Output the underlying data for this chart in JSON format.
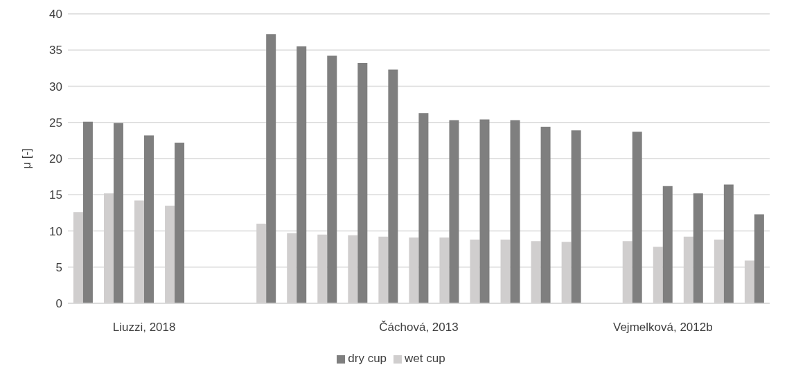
{
  "chart_data": {
    "type": "bar",
    "ylabel": "μ [-]",
    "categories": [
      null,
      null,
      "Liuzzi, 2018",
      null,
      null,
      null,
      null,
      null,
      null,
      null,
      null,
      "Čáchová, 2013",
      null,
      null,
      null,
      null,
      null,
      null,
      null,
      "Vejmelková, 2012b",
      null,
      null,
      null
    ],
    "series": [
      {
        "name": "wet cup",
        "color": "#d0cece",
        "values": [
          12.6,
          15.2,
          14.2,
          13.5,
          null,
          null,
          11.0,
          9.7,
          9.5,
          9.4,
          9.2,
          9.1,
          9.1,
          8.8,
          8.8,
          8.6,
          8.5,
          null,
          8.6,
          7.8,
          9.2,
          8.8,
          5.9
        ]
      },
      {
        "name": "dry cup",
        "color": "#7f7f7f",
        "values": [
          25.1,
          24.9,
          23.2,
          22.2,
          null,
          null,
          37.2,
          35.5,
          34.2,
          33.2,
          32.3,
          26.3,
          25.3,
          25.4,
          25.3,
          24.4,
          23.9,
          null,
          23.7,
          16.2,
          15.2,
          16.4,
          12.3
        ]
      }
    ],
    "ylim": [
      0,
      40
    ],
    "yticks": [
      0,
      5,
      10,
      15,
      20,
      25,
      30,
      35,
      40
    ],
    "grid": "y",
    "legend": "bottom"
  }
}
